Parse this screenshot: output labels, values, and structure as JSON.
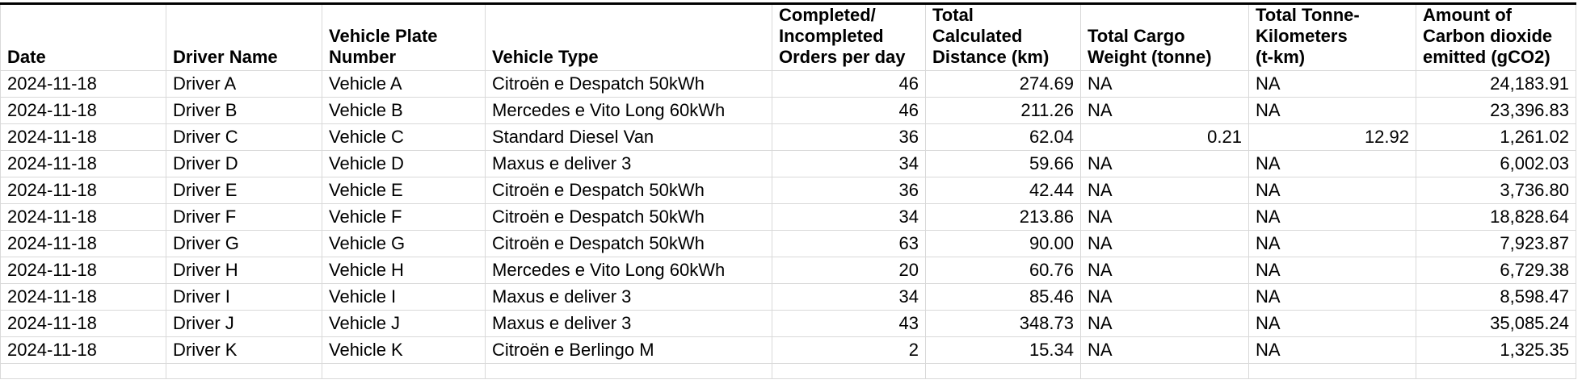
{
  "table": {
    "columns": [
      {
        "id": "date",
        "label": "Date"
      },
      {
        "id": "driver",
        "label": "Driver Name"
      },
      {
        "id": "plate",
        "label": "Vehicle Plate\nNumber"
      },
      {
        "id": "type",
        "label": "Vehicle Type"
      },
      {
        "id": "orders",
        "label": "Completed/\nIncompleted\nOrders per day"
      },
      {
        "id": "distance",
        "label": "Total\nCalculated\nDistance (km)"
      },
      {
        "id": "cargo",
        "label": "Total Cargo\nWeight (tonne)"
      },
      {
        "id": "tkm",
        "label": "Total Tonne-\nKilometers\n(t-km)"
      },
      {
        "id": "co2",
        "label": "Amount of\nCarbon dioxide\nemitted (gCO2)"
      }
    ],
    "rows": [
      {
        "date": "2024-11-18",
        "driver": "Driver A",
        "plate": "Vehicle A",
        "type": "Citroën e Despatch 50kWh",
        "orders": "46",
        "distance": "274.69",
        "cargo": "NA",
        "tkm": "NA",
        "co2": "24,183.91"
      },
      {
        "date": "2024-11-18",
        "driver": "Driver B",
        "plate": "Vehicle B",
        "type": "Mercedes e Vito Long 60kWh",
        "orders": "46",
        "distance": "211.26",
        "cargo": "NA",
        "tkm": "NA",
        "co2": "23,396.83"
      },
      {
        "date": "2024-11-18",
        "driver": "Driver C",
        "plate": "Vehicle C",
        "type": "Standard Diesel Van",
        "orders": "36",
        "distance": "62.04",
        "cargo": "0.21",
        "tkm": "12.92",
        "co2": "1,261.02"
      },
      {
        "date": "2024-11-18",
        "driver": "Driver D",
        "plate": "Vehicle D",
        "type": "Maxus e deliver 3",
        "orders": "34",
        "distance": "59.66",
        "cargo": "NA",
        "tkm": "NA",
        "co2": "6,002.03"
      },
      {
        "date": "2024-11-18",
        "driver": "Driver E",
        "plate": "Vehicle E",
        "type": "Citroën e Despatch 50kWh",
        "orders": "36",
        "distance": "42.44",
        "cargo": "NA",
        "tkm": "NA",
        "co2": "3,736.80"
      },
      {
        "date": "2024-11-18",
        "driver": "Driver F",
        "plate": "Vehicle F",
        "type": "Citroën e Despatch 50kWh",
        "orders": "34",
        "distance": "213.86",
        "cargo": "NA",
        "tkm": "NA",
        "co2": "18,828.64"
      },
      {
        "date": "2024-11-18",
        "driver": "Driver G",
        "plate": "Vehicle G",
        "type": "Citroën e Despatch 50kWh",
        "orders": "63",
        "distance": "90.00",
        "cargo": "NA",
        "tkm": "NA",
        "co2": "7,923.87"
      },
      {
        "date": "2024-11-18",
        "driver": "Driver H",
        "plate": "Vehicle H",
        "type": "Mercedes e Vito Long 60kWh",
        "orders": "20",
        "distance": "60.76",
        "cargo": "NA",
        "tkm": "NA",
        "co2": "6,729.38"
      },
      {
        "date": "2024-11-18",
        "driver": "Driver I",
        "plate": "Vehicle I",
        "type": "Maxus e deliver 3",
        "orders": "34",
        "distance": "85.46",
        "cargo": "NA",
        "tkm": "NA",
        "co2": "8,598.47"
      },
      {
        "date": "2024-11-18",
        "driver": "Driver J",
        "plate": "Vehicle J",
        "type": "Maxus e deliver 3",
        "orders": "43",
        "distance": "348.73",
        "cargo": "NA",
        "tkm": "NA",
        "co2": "35,085.24"
      },
      {
        "date": "2024-11-18",
        "driver": "Driver K",
        "plate": "Vehicle K",
        "type": "Citroën e Berlingo M",
        "orders": "2",
        "distance": "15.34",
        "cargo": "NA",
        "tkm": "NA",
        "co2": "1,325.35"
      }
    ]
  },
  "colors": {
    "grid": "#d9d9d9",
    "header_top_border": "#000000",
    "text": "#000000",
    "background": "#ffffff"
  }
}
